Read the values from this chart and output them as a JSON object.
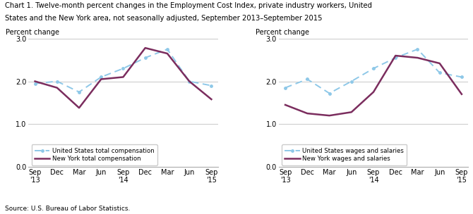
{
  "title_line1": "Chart 1. Twelve-month percent changes in the Employment Cost Index, private industry workers, United",
  "title_line2": "States and the New York area, not seasonally adjusted, September 2013–September 2015",
  "source": "Source: U.S. Bureau of Labor Statistics.",
  "ylim": [
    0.0,
    3.0
  ],
  "yticks": [
    0.0,
    1.0,
    2.0,
    3.0
  ],
  "ylabel": "Percent change",
  "chart1": {
    "us_total": [
      1.95,
      2.0,
      1.75,
      2.1,
      2.3,
      2.55,
      2.75,
      2.0,
      1.9
    ],
    "ny_total": [
      2.0,
      1.85,
      1.38,
      2.05,
      2.1,
      2.78,
      2.65,
      2.0,
      1.58
    ],
    "legend1": "United States total compensation",
    "legend2": "New York total compensation"
  },
  "chart2": {
    "us_wages": [
      1.85,
      2.05,
      1.72,
      2.0,
      2.3,
      2.55,
      2.75,
      2.2,
      2.1
    ],
    "ny_wages": [
      1.45,
      1.25,
      1.2,
      1.28,
      1.75,
      2.6,
      2.55,
      2.42,
      1.7
    ],
    "legend1": "United States wages and salaries",
    "legend2": "New York wages and salaries"
  },
  "us_color": "#8EC8E8",
  "ny_color": "#7B2D5E",
  "grid_color": "#C0C0C0",
  "month_labels": [
    "Sep",
    "Dec",
    "Mar",
    "Jun",
    "Sep",
    "Dec",
    "Mar",
    "Jun",
    "Sep"
  ],
  "year_labels": [
    "'13",
    "",
    "",
    "",
    "'14",
    "",
    "",
    "",
    "'15"
  ]
}
